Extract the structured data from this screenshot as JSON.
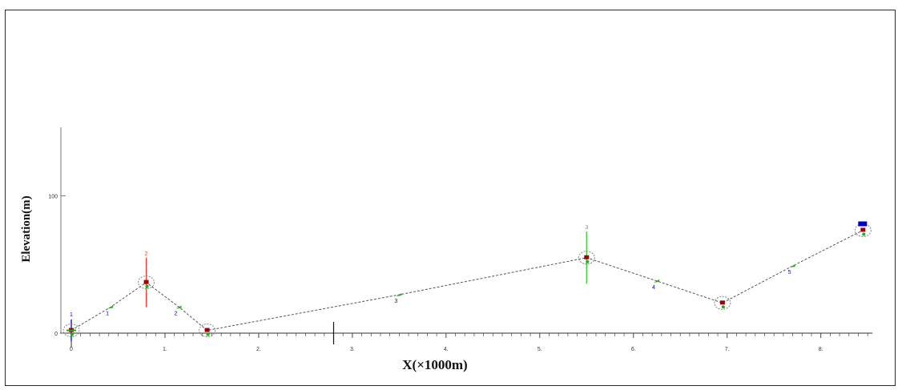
{
  "chart_data": {
    "type": "line",
    "title": "",
    "xlabel": "X(×1000m)",
    "ylabel": "Elevation(m)",
    "xlim": [
      0,
      8.55
    ],
    "ylim": [
      0,
      150
    ],
    "x_tick_labels": [
      "0",
      "1.",
      "2.",
      "3.",
      "4.",
      "5.",
      "6.",
      "7.",
      "8."
    ],
    "y_tick_labels": [
      "0",
      "100"
    ],
    "y_tick_values": [
      0,
      100
    ],
    "grid": false,
    "series": [
      {
        "values_x": [
          0.0,
          0.42,
          0.8,
          1.15,
          1.45,
          3.5,
          5.5,
          6.25,
          6.95,
          7.7,
          8.45
        ],
        "values_y": [
          2,
          19,
          37,
          19,
          2,
          28,
          55,
          38,
          22,
          49,
          75
        ]
      }
    ],
    "points": [
      {
        "x": 0.0,
        "y": 2,
        "label": "",
        "marker": "site",
        "error": 8,
        "error_color": "#0000cc"
      },
      {
        "x": 0.42,
        "y": 19,
        "label": "1",
        "marker": "small",
        "label_color": "#0000cc"
      },
      {
        "x": 0.8,
        "y": 37,
        "label": "2",
        "marker": "site",
        "error": 18,
        "error_color": "#ff3333",
        "label_color": "#ff3333"
      },
      {
        "x": 1.15,
        "y": 19,
        "label": "2",
        "marker": "small",
        "label_color": "#0000cc"
      },
      {
        "x": 1.45,
        "y": 2,
        "label": "",
        "marker": "site"
      },
      {
        "x": 3.5,
        "y": 28,
        "label": "3",
        "marker": "small",
        "label_color": "#0000cc"
      },
      {
        "x": 5.5,
        "y": 55,
        "label": "3",
        "marker": "site",
        "error": 19,
        "error_color": "#33cc33",
        "label_color": "#33cc33"
      },
      {
        "x": 6.25,
        "y": 38,
        "label": "4",
        "marker": "small",
        "label_color": "#0000cc"
      },
      {
        "x": 6.95,
        "y": 22,
        "label": "",
        "marker": "site"
      },
      {
        "x": 7.7,
        "y": 49,
        "label": "5",
        "marker": "small",
        "label_color": "#0000cc"
      },
      {
        "x": 8.45,
        "y": 75,
        "label": "",
        "marker": "site"
      }
    ],
    "origin_label": "1",
    "x_marker": 2.8,
    "end_flag_color": "#0000cc",
    "colors": {
      "line": "#555555",
      "site_fill": "#a00000",
      "site_ring": "#777777",
      "small_marker": "#22aa22",
      "origin_label": "#0000cc",
      "y_label_100": "#8b008b"
    }
  }
}
